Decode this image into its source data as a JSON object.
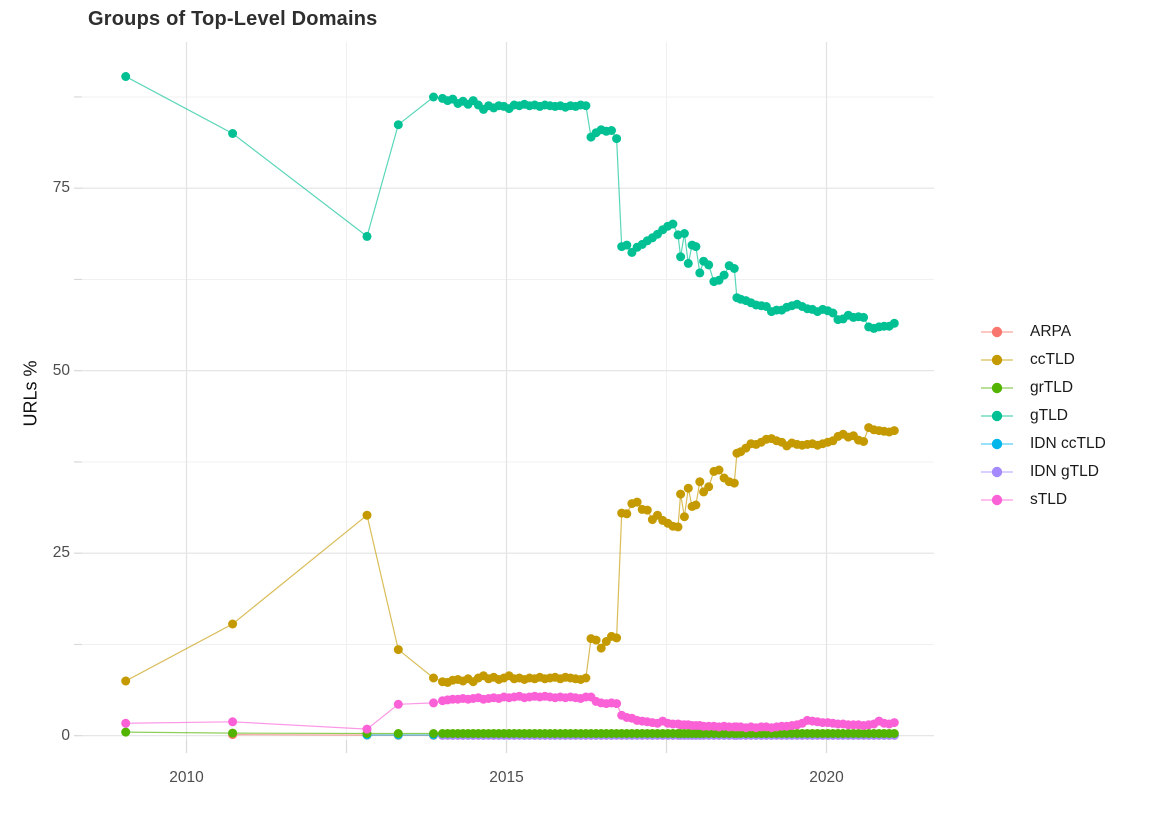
{
  "chart_data": {
    "type": "scatter",
    "title": "Groups of Top-Level Domains",
    "subtitle": "",
    "xlabel": "",
    "ylabel": "URLs %",
    "grid": true,
    "legend_position": "right",
    "xlim": [
      2008.4,
      2021.7
    ],
    "ylim": [
      0,
      95
    ],
    "x_ticks": [
      2010,
      2015,
      2020
    ],
    "x_minor_gridlines": [
      2012.5,
      2017.5
    ],
    "y_ticks": [
      0,
      25,
      50,
      75
    ],
    "y_minor_gridlines": [
      12.5,
      37.5,
      62.5,
      87.5
    ],
    "x": [
      2009.05,
      2010.72,
      2012.82,
      2013.31,
      2013.86,
      2014.0,
      2014.08,
      2014.16,
      2014.24,
      2014.32,
      2014.4,
      2014.48,
      2014.56,
      2014.64,
      2014.72,
      2014.8,
      2014.88,
      2014.96,
      2015.04,
      2015.12,
      2015.2,
      2015.28,
      2015.36,
      2015.44,
      2015.52,
      2015.6,
      2015.68,
      2015.76,
      2015.84,
      2015.92,
      2016.0,
      2016.08,
      2016.16,
      2016.24,
      2016.32,
      2016.4,
      2016.48,
      2016.56,
      2016.64,
      2016.72,
      2016.8,
      2016.88,
      2016.96,
      2017.04,
      2017.12,
      2017.2,
      2017.28,
      2017.36,
      2017.44,
      2017.52,
      2017.6,
      2017.68,
      2017.72,
      2017.78,
      2017.84,
      2017.9,
      2017.96,
      2018.02,
      2018.08,
      2018.16,
      2018.24,
      2018.32,
      2018.4,
      2018.48,
      2018.56,
      2018.6,
      2018.66,
      2018.74,
      2018.82,
      2018.9,
      2018.98,
      2019.06,
      2019.14,
      2019.22,
      2019.3,
      2019.38,
      2019.46,
      2019.54,
      2019.62,
      2019.7,
      2019.78,
      2019.86,
      2019.94,
      2020.02,
      2020.1,
      2020.18,
      2020.26,
      2020.34,
      2020.42,
      2020.5,
      2020.58,
      2020.66,
      2020.74,
      2020.82,
      2020.9,
      2020.98,
      2021.06
    ],
    "series": [
      {
        "name": "ARPA",
        "color": "#F8766D",
        "values": [
          null,
          0.15,
          0.08,
          0.05,
          0.05,
          0.05,
          0.05,
          0.05,
          0.05,
          0.05,
          0.05,
          0.05,
          0.05,
          0.05,
          0.05,
          0.05,
          0.05,
          0.05,
          0.05,
          0.05,
          0.05,
          0.05,
          0.05,
          0.05,
          0.05,
          0.05,
          0.05,
          0.05,
          0.05,
          0.05,
          0.05,
          0.05,
          0.05,
          0.05,
          0.05,
          0.05,
          0.05,
          0.05,
          0.05,
          0.05,
          0.05,
          0.05,
          0.05,
          0.05,
          0.05,
          0.05,
          0.05,
          0.05,
          0.05,
          0.05,
          0.05,
          0.05,
          0.05,
          0.05,
          0.05,
          0.05,
          0.05,
          0.05,
          0.05,
          0.05,
          0.05,
          0.05,
          0.05,
          0.05,
          0.05,
          0.05,
          0.05,
          0.05,
          0.05,
          0.05,
          0.05,
          0.05,
          0.05,
          0.05,
          0.05,
          0.05,
          0.05,
          0.05,
          0.05,
          0.05,
          0.05,
          0.05,
          0.05,
          0.05,
          0.05,
          0.05,
          0.05,
          0.05,
          0.05,
          0.05,
          0.05,
          0.05,
          0.05,
          0.05,
          0.05,
          0.05,
          0.05
        ]
      },
      {
        "name": "ccTLD",
        "color": "#C49A00",
        "values": [
          7.5,
          15.3,
          30.2,
          11.8,
          7.9,
          7.4,
          7.3,
          7.6,
          7.7,
          7.5,
          7.8,
          7.4,
          7.9,
          8.2,
          7.8,
          8.0,
          7.7,
          7.9,
          8.2,
          7.8,
          7.9,
          7.7,
          7.9,
          7.8,
          8.0,
          7.8,
          7.9,
          8.0,
          7.8,
          8.0,
          7.9,
          7.8,
          7.7,
          7.9,
          13.3,
          13.1,
          12.0,
          12.9,
          13.6,
          13.4,
          30.5,
          30.4,
          31.8,
          32.0,
          31.0,
          30.9,
          29.6,
          30.2,
          29.5,
          29.1,
          28.7,
          28.6,
          33.1,
          30.0,
          33.9,
          31.4,
          31.6,
          34.8,
          33.4,
          34.1,
          36.2,
          36.4,
          35.3,
          34.8,
          34.6,
          38.7,
          38.9,
          39.4,
          40.0,
          39.9,
          40.2,
          40.6,
          40.7,
          40.4,
          40.2,
          39.7,
          40.1,
          39.9,
          39.8,
          39.9,
          40.0,
          39.8,
          40.0,
          40.2,
          40.4,
          41.0,
          41.3,
          40.9,
          41.1,
          40.5,
          40.3,
          42.2,
          41.9,
          41.8,
          41.7,
          41.6,
          41.8
        ]
      },
      {
        "name": "grTLD",
        "color": "#53B400",
        "values": [
          0.5,
          0.35,
          0.3,
          0.3,
          0.3,
          0.3,
          0.3,
          0.3,
          0.3,
          0.3,
          0.3,
          0.3,
          0.3,
          0.3,
          0.3,
          0.3,
          0.3,
          0.3,
          0.3,
          0.3,
          0.3,
          0.3,
          0.3,
          0.3,
          0.3,
          0.3,
          0.3,
          0.3,
          0.3,
          0.3,
          0.3,
          0.3,
          0.3,
          0.3,
          0.3,
          0.3,
          0.3,
          0.3,
          0.3,
          0.3,
          0.3,
          0.3,
          0.3,
          0.3,
          0.3,
          0.3,
          0.3,
          0.3,
          0.3,
          0.3,
          0.3,
          0.3,
          0.3,
          0.3,
          0.3,
          0.3,
          0.3,
          0.3,
          0.3,
          0.3,
          0.3,
          0.3,
          0.3,
          0.3,
          0.3,
          0.3,
          0.3,
          0.3,
          0.3,
          0.3,
          0.3,
          0.3,
          0.3,
          0.3,
          0.3,
          0.3,
          0.3,
          0.3,
          0.3,
          0.3,
          0.3,
          0.3,
          0.3,
          0.3,
          0.3,
          0.3,
          0.3,
          0.3,
          0.3,
          0.3,
          0.3,
          0.3,
          0.3,
          0.3,
          0.3,
          0.3,
          0.3
        ]
      },
      {
        "name": "gTLD",
        "color": "#00C094",
        "values": [
          90.3,
          82.5,
          68.4,
          83.7,
          87.5,
          87.3,
          87.0,
          87.2,
          86.6,
          86.9,
          86.5,
          87.0,
          86.4,
          85.8,
          86.3,
          86.0,
          86.3,
          86.2,
          85.9,
          86.4,
          86.3,
          86.5,
          86.3,
          86.4,
          86.2,
          86.4,
          86.3,
          86.2,
          86.3,
          86.1,
          86.3,
          86.2,
          86.4,
          86.3,
          82.0,
          82.6,
          83.0,
          82.8,
          82.9,
          81.8,
          67.0,
          67.2,
          66.2,
          66.9,
          67.3,
          67.8,
          68.2,
          68.7,
          69.3,
          69.8,
          70.1,
          68.6,
          65.6,
          68.8,
          64.7,
          67.2,
          67.0,
          63.4,
          65.0,
          64.5,
          62.2,
          62.4,
          63.1,
          64.4,
          64.0,
          60.0,
          59.8,
          59.6,
          59.3,
          59.0,
          58.9,
          58.8,
          58.1,
          58.3,
          58.3,
          58.7,
          58.9,
          59.1,
          58.8,
          58.5,
          58.4,
          58.1,
          58.4,
          58.2,
          57.9,
          57.0,
          57.1,
          57.6,
          57.3,
          57.4,
          57.3,
          56.0,
          55.8,
          56.0,
          56.1,
          56.1,
          56.5
        ]
      },
      {
        "name": "IDN ccTLD",
        "color": "#00B6EB",
        "values": [
          null,
          null,
          0.1,
          0.1,
          0.1,
          0.1,
          0.1,
          0.1,
          0.1,
          0.1,
          0.1,
          0.1,
          0.1,
          0.1,
          0.1,
          0.1,
          0.1,
          0.1,
          0.1,
          0.1,
          0.1,
          0.1,
          0.1,
          0.1,
          0.1,
          0.1,
          0.1,
          0.1,
          0.1,
          0.1,
          0.1,
          0.1,
          0.1,
          0.1,
          0.1,
          0.1,
          0.1,
          0.1,
          0.1,
          0.1,
          0.1,
          0.1,
          0.1,
          0.1,
          0.1,
          0.1,
          0.1,
          0.1,
          0.1,
          0.1,
          0.1,
          0.1,
          0.1,
          0.1,
          0.1,
          0.1,
          0.1,
          0.1,
          0.1,
          0.1,
          0.1,
          0.1,
          0.1,
          0.1,
          0.1,
          0.1,
          0.1,
          0.1,
          0.1,
          0.1,
          0.1,
          0.1,
          0.1,
          0.1,
          0.1,
          0.1,
          0.1,
          0.1,
          0.1,
          0.1,
          0.1,
          0.1,
          0.1,
          0.1,
          0.1,
          0.1,
          0.1,
          0.1,
          0.1,
          0.1,
          0.1,
          0.1,
          0.1,
          0.1,
          0.1,
          0.1,
          0.1
        ]
      },
      {
        "name": "IDN gTLD",
        "color": "#A58AFF",
        "values": [
          null,
          null,
          null,
          null,
          null,
          0.05,
          0.05,
          0.05,
          0.05,
          0.05,
          0.05,
          0.05,
          0.05,
          0.05,
          0.05,
          0.05,
          0.05,
          0.05,
          0.05,
          0.05,
          0.05,
          0.05,
          0.05,
          0.05,
          0.05,
          0.05,
          0.05,
          0.05,
          0.05,
          0.05,
          0.05,
          0.05,
          0.05,
          0.05,
          0.05,
          0.05,
          0.05,
          0.05,
          0.05,
          0.05,
          0.05,
          0.05,
          0.05,
          0.05,
          0.05,
          0.05,
          0.05,
          0.05,
          0.05,
          0.05,
          0.05,
          0.05,
          0.05,
          0.05,
          0.05,
          0.05,
          0.05,
          0.05,
          0.05,
          0.05,
          0.05,
          0.05,
          0.05,
          0.05,
          0.05,
          0.05,
          0.05,
          0.05,
          0.05,
          0.05,
          0.05,
          0.05,
          0.05,
          0.05,
          0.05,
          0.05,
          0.05,
          0.05,
          0.05,
          0.05,
          0.05,
          0.05,
          0.05,
          0.05,
          0.05,
          0.05,
          0.05,
          0.05,
          0.05,
          0.05,
          0.05,
          0.05,
          0.05,
          0.05,
          0.05,
          0.05,
          0.05
        ]
      },
      {
        "name": "sTLD",
        "color": "#FB61D7",
        "values": [
          1.7,
          1.9,
          0.9,
          4.3,
          4.5,
          4.8,
          4.9,
          5.0,
          5.0,
          5.1,
          5.0,
          5.1,
          5.2,
          5.0,
          5.1,
          5.2,
          5.1,
          5.3,
          5.2,
          5.3,
          5.4,
          5.2,
          5.3,
          5.4,
          5.3,
          5.4,
          5.3,
          5.2,
          5.3,
          5.2,
          5.3,
          5.2,
          5.1,
          5.3,
          5.3,
          4.7,
          4.5,
          4.4,
          4.5,
          4.4,
          2.8,
          2.5,
          2.4,
          2.1,
          2.0,
          1.9,
          1.8,
          1.7,
          2.0,
          1.7,
          1.6,
          1.6,
          1.5,
          1.5,
          1.5,
          1.4,
          1.4,
          1.4,
          1.3,
          1.3,
          1.3,
          1.2,
          1.3,
          1.2,
          1.2,
          1.2,
          1.2,
          1.1,
          1.2,
          1.1,
          1.2,
          1.2,
          1.1,
          1.2,
          1.3,
          1.3,
          1.4,
          1.5,
          1.7,
          2.1,
          2.0,
          1.9,
          1.8,
          1.8,
          1.7,
          1.6,
          1.6,
          1.5,
          1.5,
          1.5,
          1.4,
          1.5,
          1.6,
          2.0,
          1.7,
          1.6,
          1.8
        ]
      }
    ]
  },
  "colors": {
    "gridline_major": "#e3e3e3",
    "gridline_minor": "#f0f0f0",
    "tick_mark": "#d9d9d9",
    "tick_text": "#4d4d4d",
    "title_text": "#2e2e2e"
  }
}
